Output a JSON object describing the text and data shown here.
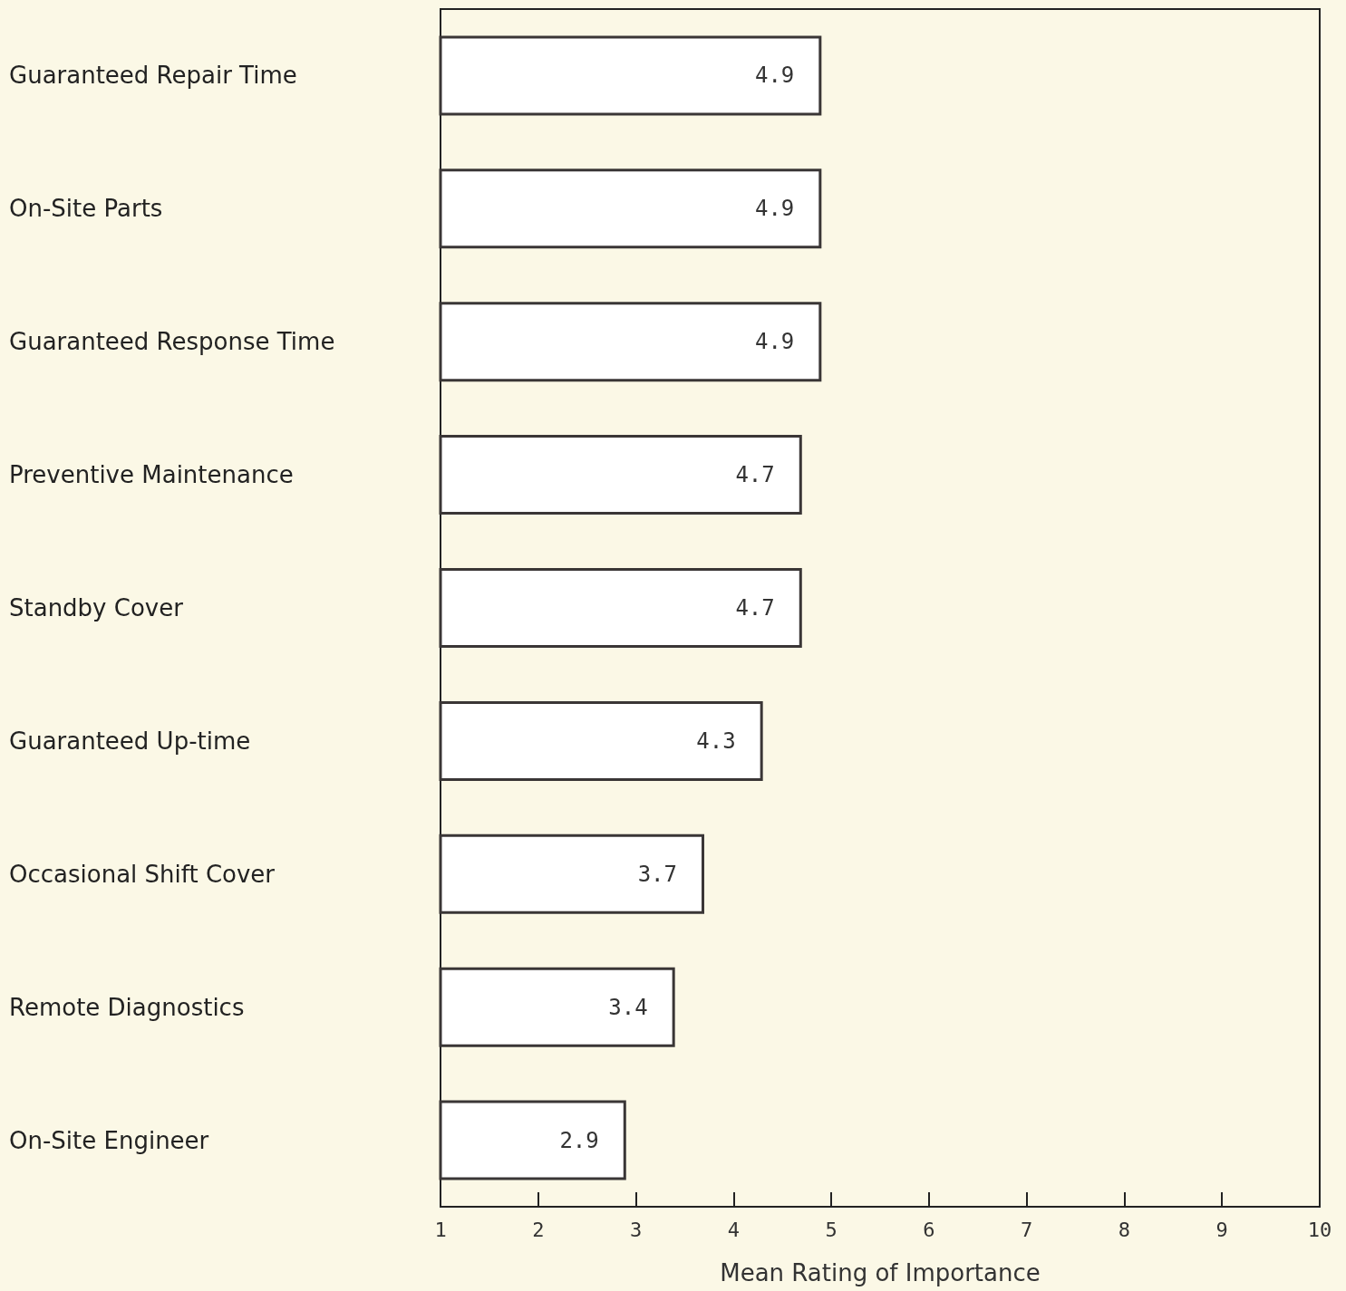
{
  "chart_data": {
    "type": "bar",
    "orientation": "horizontal",
    "xlabel": "Mean Rating of Importance",
    "categories": [
      "Guaranteed Repair Time",
      "On-Site Parts",
      "Guaranteed Response Time",
      "Preventive Maintenance",
      "Standby Cover",
      "Guaranteed Up-time",
      "Occasional Shift Cover",
      "Remote Diagnostics",
      "On-Site Engineer"
    ],
    "values": [
      4.9,
      4.9,
      4.9,
      4.7,
      4.7,
      4.3,
      3.7,
      3.4,
      2.9
    ],
    "color": "#ffffff",
    "xlim": [
      1,
      10
    ],
    "xticks": [
      1,
      2,
      3,
      4,
      5,
      6,
      7,
      8,
      9,
      10
    ],
    "grid": false,
    "data_labels": true
  }
}
